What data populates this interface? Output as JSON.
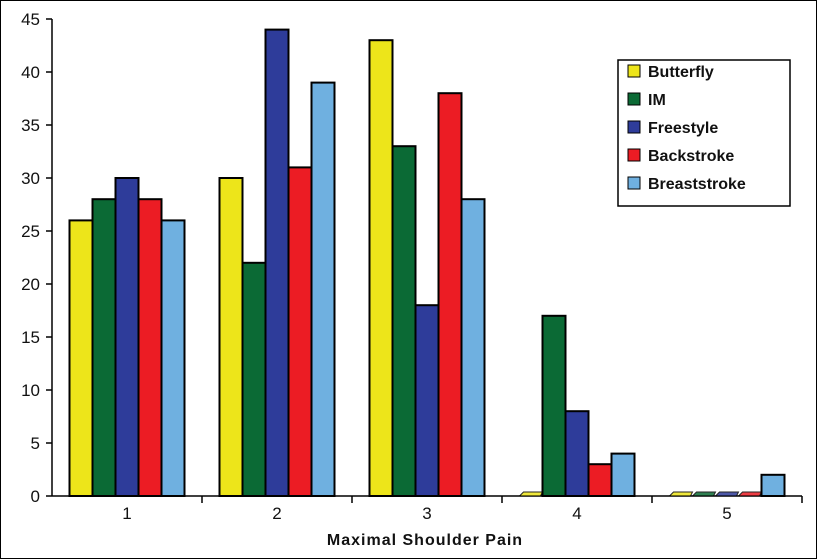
{
  "chart_data": {
    "type": "bar",
    "title": "",
    "xlabel": "Maximal Shoulder Pain",
    "ylabel": "",
    "ylim": [
      0,
      45
    ],
    "yticks": [
      "0",
      "5",
      "10",
      "15",
      "20",
      "25",
      "30",
      "35",
      "40",
      "45"
    ],
    "categories": [
      "1",
      "2",
      "3",
      "4",
      "5"
    ],
    "legend_position": "top-right",
    "series": [
      {
        "name": "Butterfly",
        "color": "#ede51a",
        "values": [
          26,
          30,
          43,
          0,
          0
        ]
      },
      {
        "name": "IM",
        "color": "#0b6a35",
        "values": [
          28,
          22,
          33,
          17,
          0
        ]
      },
      {
        "name": "Freestyle",
        "color": "#2e3c9a",
        "values": [
          30,
          44,
          18,
          8,
          0
        ]
      },
      {
        "name": "Backstroke",
        "color": "#ec1c24",
        "values": [
          28,
          31,
          38,
          3,
          0
        ]
      },
      {
        "name": "Breaststroke",
        "color": "#6fb0e0",
        "values": [
          26,
          39,
          28,
          4,
          2
        ]
      }
    ]
  }
}
